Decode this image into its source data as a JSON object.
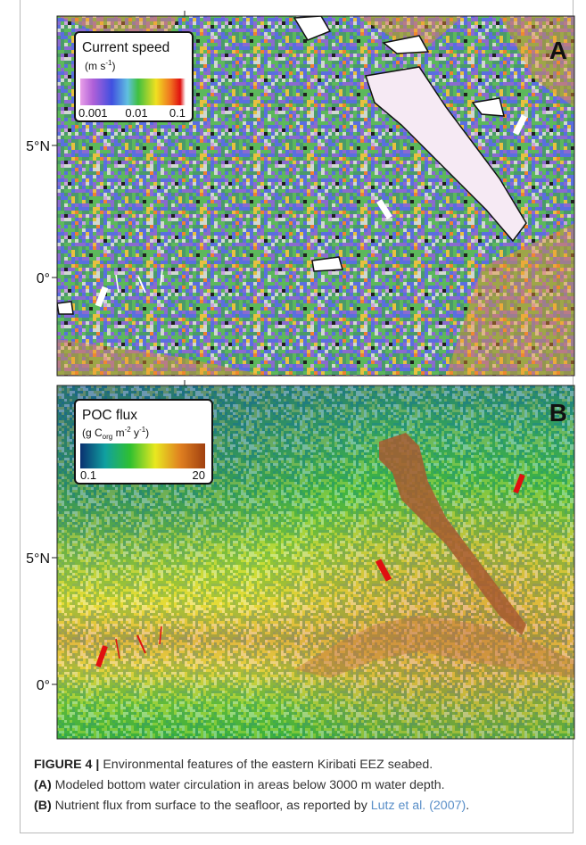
{
  "panels": [
    {
      "label": "A",
      "legend": {
        "title": "Current speed",
        "unit": [
          "(m s",
          "-1",
          ")"
        ],
        "ticks": [
          "0.001",
          "0.01",
          "0.1"
        ]
      },
      "axis_labels": [
        "5°N",
        "0°"
      ]
    },
    {
      "label": "B",
      "legend": {
        "title": "POC flux",
        "unit": [
          "(g C",
          "org",
          " m",
          "-2",
          " y",
          "-1",
          ")"
        ],
        "ticks": [
          "0.1",
          "20"
        ]
      },
      "axis_labels": [
        "5°N",
        "0°"
      ]
    }
  ],
  "caption": {
    "figure": "FIGURE 4 |",
    "title": "Environmental features of the eastern Kiribati EEZ seabed.",
    "items": [
      {
        "label": "(A)",
        "text": "Modeled bottom water circulation in areas below 3000 m water depth."
      },
      {
        "label": "(B)",
        "text": "Nutrient flux from surface to the seafloor, as reported by ",
        "link": "Lutz et al. (2007)",
        "end": "."
      }
    ]
  }
}
